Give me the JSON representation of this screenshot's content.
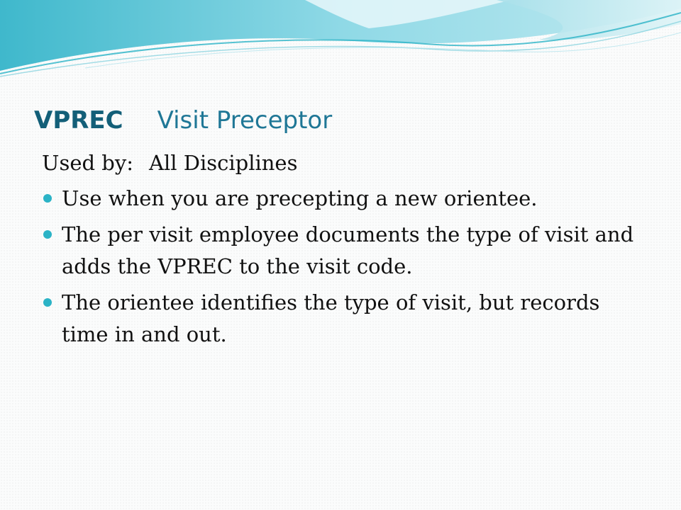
{
  "slide": {
    "title_code": "VPREC",
    "title_name": "Visit Preceptor",
    "used_by_label": "Used by:",
    "used_by_value": "All Disciplines",
    "bullets": [
      "Use when you are precepting a new orientee.",
      "The per visit employee documents the type of visit and adds the VPREC to the visit code.",
      "The orientee identifies the type of visit, but records time in and out."
    ]
  },
  "colors": {
    "title": "#1a6e8a",
    "bullet": "#2bb3c6",
    "wave_light": "#bfe9f0",
    "wave_mid": "#6fcddd",
    "wave_dark": "#2bb3c6"
  }
}
